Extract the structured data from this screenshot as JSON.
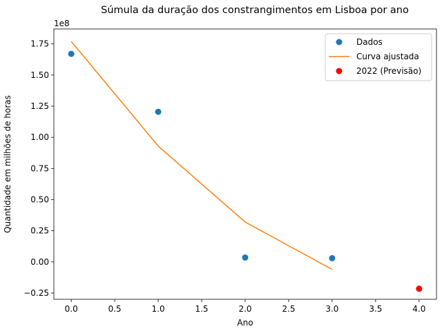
{
  "chart_data": {
    "type": "scatter",
    "title": "Súmula da duração dos constrangimentos em Lisboa por ano",
    "xlabel": "Ano",
    "ylabel": "Quantidade em milhões de horas",
    "offset_label": "1e8",
    "xlim": [
      -0.2,
      4.2
    ],
    "ylim": [
      -0.3,
      1.87
    ],
    "x_ticks": [
      0.0,
      0.5,
      1.0,
      1.5,
      2.0,
      2.5,
      3.0,
      3.5,
      4.0
    ],
    "x_tick_labels": [
      "0.0",
      "0.5",
      "1.0",
      "1.5",
      "2.0",
      "2.5",
      "3.0",
      "3.5",
      "4.0"
    ],
    "y_ticks": [
      -0.25,
      0.0,
      0.25,
      0.5,
      0.75,
      1.0,
      1.25,
      1.5,
      1.75
    ],
    "y_tick_labels": [
      "−0.25",
      "0.00",
      "0.25",
      "0.50",
      "0.75",
      "1.00",
      "1.25",
      "1.50",
      "1.75"
    ],
    "grid": false,
    "legend_position": "top-right",
    "series": [
      {
        "name": "Dados",
        "kind": "scatter",
        "color": "#1f77b4",
        "x": [
          0,
          1,
          2,
          3
        ],
        "y": [
          1.67,
          1.205,
          0.035,
          0.03
        ]
      },
      {
        "name": "Curva ajustada",
        "kind": "line",
        "color": "#ff7f0e",
        "x": [
          0,
          1,
          2,
          3
        ],
        "y": [
          1.77,
          0.93,
          0.32,
          -0.06
        ]
      },
      {
        "name": "2022 (Previsão)",
        "kind": "scatter",
        "color": "#ff0000",
        "x": [
          4
        ],
        "y": [
          -0.215
        ]
      }
    ]
  }
}
